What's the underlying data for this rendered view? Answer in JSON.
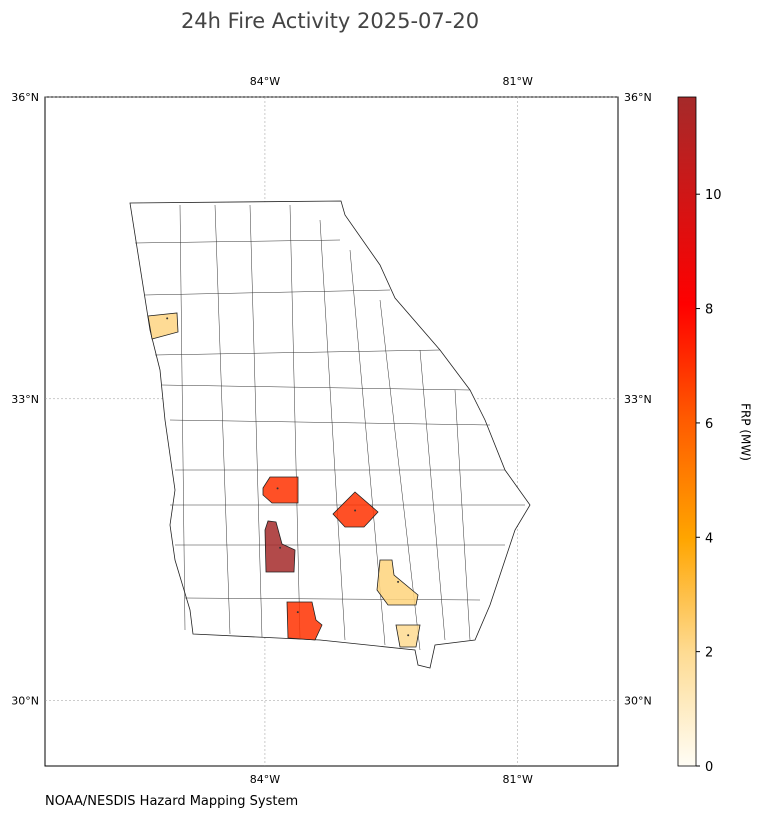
{
  "chart_data": {
    "type": "map",
    "title": "24h Fire Activity 2025-07-20",
    "source": "NOAA/NESDIS Hazard Mapping System",
    "xlim": [
      -86.61,
      -79.81
    ],
    "ylim": [
      29.35,
      36
    ],
    "xticks": [
      {
        "value": -84,
        "label": "84°W"
      },
      {
        "value": -81,
        "label": "81°W"
      }
    ],
    "yticks": [
      {
        "value": 30,
        "label": "30°N"
      },
      {
        "value": 33,
        "label": "33°N"
      },
      {
        "value": 36,
        "label": "36°N"
      }
    ],
    "grid": true,
    "fires": {
      "x": [
        -85.16,
        -83.85,
        -82.93,
        -83.82,
        -82.42,
        -83.61,
        -82.3
      ],
      "y": [
        33.8,
        32.11,
        31.89,
        31.52,
        31.18,
        30.88,
        30.65
      ],
      "values": [
        2.2,
        7,
        7,
        11.7,
        2.3,
        7,
        2
      ]
    },
    "colorbar": {
      "label": "FRP (MW)",
      "lim": [
        0,
        11.7
      ],
      "ticks": [
        0,
        2,
        4,
        6,
        8,
        10
      ]
    }
  }
}
